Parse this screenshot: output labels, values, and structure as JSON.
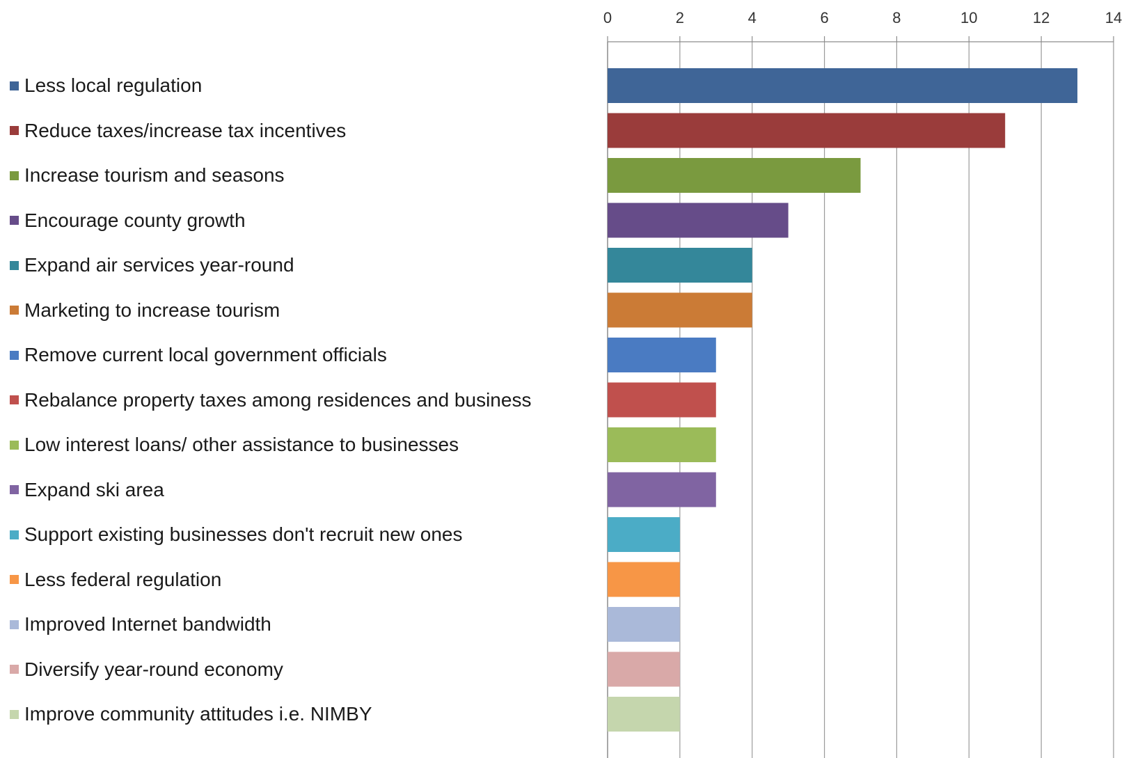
{
  "chart_data": {
    "type": "bar",
    "orientation": "horizontal",
    "categories": [
      "Less local regulation",
      "Reduce taxes/increase tax incentives",
      "Increase tourism and seasons",
      "Encourage county growth",
      "Expand air services year-round",
      "Marketing to increase tourism",
      "Remove current local government officials",
      "Rebalance property taxes among residences and business",
      "Low interest loans/ other assistance to businesses",
      "Expand ski area",
      "Support existing businesses don't recruit new ones",
      "Less federal regulation",
      "Improved Internet bandwidth",
      "Diversify year-round economy",
      "Improve community attitudes i.e. NIMBY"
    ],
    "values": [
      13,
      11,
      7,
      5,
      4,
      4,
      3,
      3,
      3,
      3,
      2,
      2,
      2,
      2,
      2
    ],
    "colors": [
      "#3f6597",
      "#9a3c3b",
      "#7a9a3f",
      "#664c89",
      "#34879a",
      "#cb7b36",
      "#4a7bc2",
      "#c0504d",
      "#9bbb59",
      "#8064a2",
      "#4bacc6",
      "#f79646",
      "#aab9d9",
      "#d9a9a8",
      "#c5d6ad"
    ],
    "xlim": [
      0,
      14
    ],
    "x_ticks": [
      "0",
      "2",
      "4",
      "6",
      "8",
      "10",
      "12",
      "14"
    ],
    "x_axis_position": "top",
    "grid": true,
    "legend_position": "left",
    "title": "",
    "xlabel": "",
    "ylabel": ""
  }
}
